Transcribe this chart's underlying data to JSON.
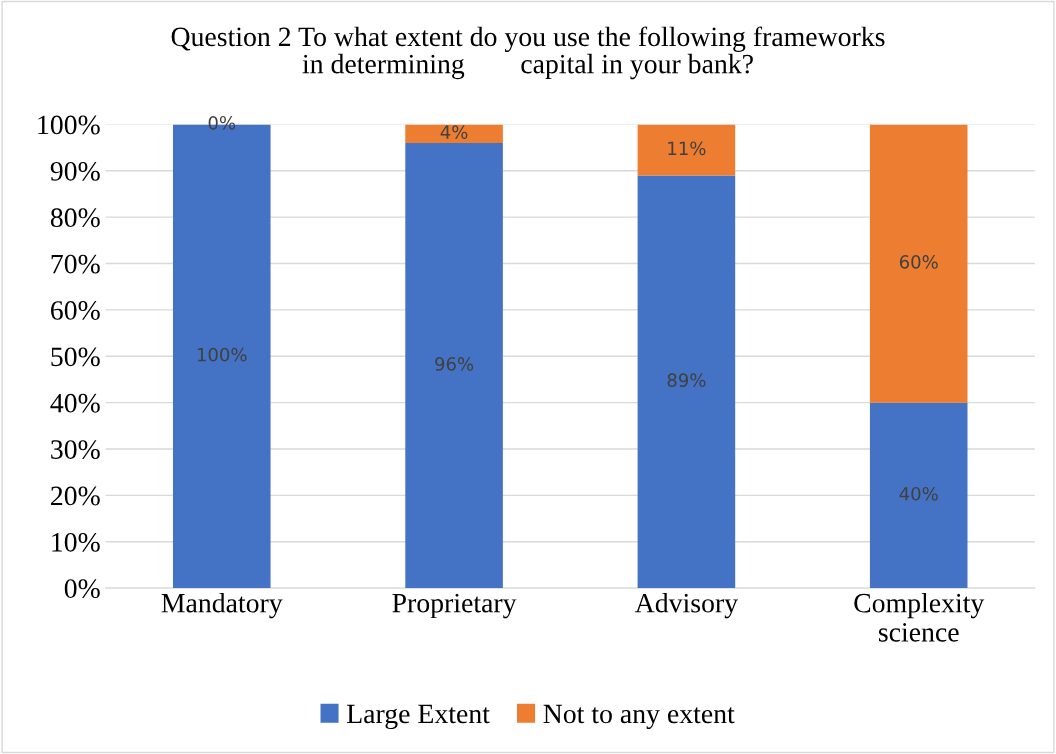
{
  "chart_data": {
    "type": "bar",
    "stacked": true,
    "title": "Question 2 To what extent do you use the following frameworks\nin determining        capital in your bank?",
    "categories": [
      "Mandatory",
      "Proprietary",
      "Advisory",
      "Complexity\nscience"
    ],
    "series": [
      {
        "name": "Large Extent",
        "color": "#4472c4",
        "values": [
          100,
          96,
          89,
          40
        ],
        "value_labels": [
          "100%",
          "96%",
          "89%",
          "40%"
        ]
      },
      {
        "name": "Not to any extent",
        "color": "#ed7d31",
        "values": [
          0,
          4,
          11,
          60
        ],
        "value_labels": [
          "0%",
          "4%",
          "11%",
          "60%"
        ]
      }
    ],
    "ylim": [
      0,
      100
    ],
    "yticks": [
      {
        "value": 0,
        "label": "0%"
      },
      {
        "value": 10,
        "label": "10%"
      },
      {
        "value": 20,
        "label": "20%"
      },
      {
        "value": 30,
        "label": "30%"
      },
      {
        "value": 40,
        "label": "40%"
      },
      {
        "value": 50,
        "label": "50%"
      },
      {
        "value": 60,
        "label": "60%"
      },
      {
        "value": 70,
        "label": "70%"
      },
      {
        "value": 80,
        "label": "80%"
      },
      {
        "value": 90,
        "label": "90%"
      },
      {
        "value": 100,
        "label": "100%"
      }
    ],
    "grid": "y",
    "legend": "bottom"
  }
}
